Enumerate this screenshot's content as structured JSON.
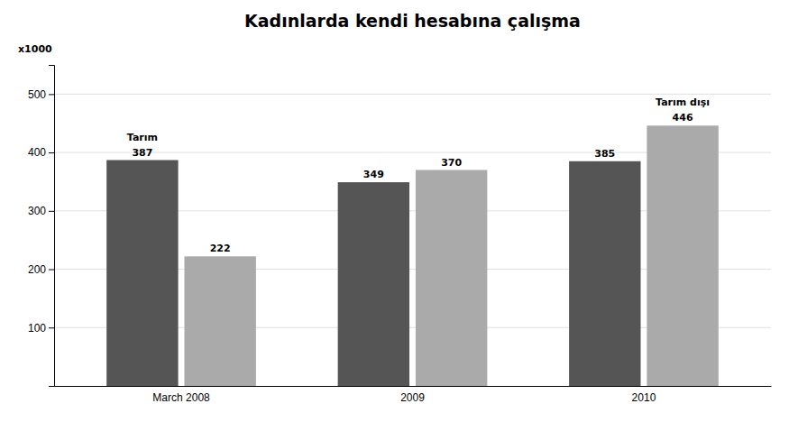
{
  "chart_data": {
    "type": "bar",
    "title": "Kadınlarda kendi hesabına çalışma",
    "ylabel": "x1000",
    "categories": [
      "March 2008",
      "2009",
      "2010"
    ],
    "series": [
      {
        "name": "Tarım",
        "color": "#555555",
        "values": [
          387,
          349,
          385
        ]
      },
      {
        "name": "Tarım dışı",
        "color": "#aaaaaa",
        "values": [
          222,
          370,
          446
        ]
      }
    ],
    "ylim": [
      0,
      550
    ],
    "yticks": [
      100,
      200,
      300,
      400,
      500
    ],
    "grid": true,
    "data_labels": true
  }
}
